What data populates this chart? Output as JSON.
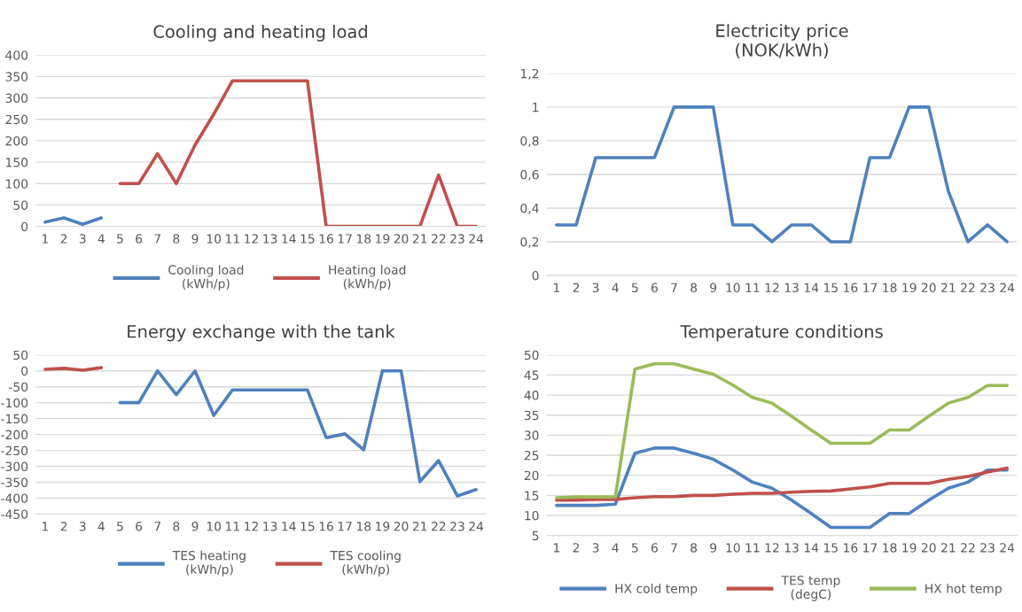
{
  "chart_data": [
    {
      "type": "line",
      "title": "Cooling and heating load",
      "categories": [
        "1",
        "2",
        "3",
        "4",
        "5",
        "6",
        "7",
        "8",
        "9",
        "10",
        "11",
        "12",
        "13",
        "14",
        "15",
        "16",
        "17",
        "18",
        "19",
        "20",
        "21",
        "22",
        "23",
        "24"
      ],
      "series": [
        {
          "name": "Cooling load\n(kWh/p)",
          "color": "#4f81bd",
          "values": [
            10,
            20,
            5,
            20,
            null,
            null,
            null,
            null,
            null,
            null,
            null,
            null,
            null,
            null,
            null,
            null,
            null,
            null,
            null,
            null,
            null,
            null,
            null,
            null
          ]
        },
        {
          "name": "Heating load\n(kWh/p)",
          "color": "#c0504d",
          "values": [
            null,
            null,
            null,
            null,
            100,
            100,
            170,
            100,
            190,
            262,
            340,
            340,
            340,
            340,
            340,
            0,
            0,
            0,
            0,
            0,
            0,
            120,
            0,
            0
          ]
        }
      ],
      "ylim": [
        0,
        400
      ],
      "yticks": [
        0,
        50,
        100,
        150,
        200,
        250,
        300,
        350,
        400
      ],
      "grid": "y",
      "legend": "bottom",
      "marker": "none",
      "line_style": "solid"
    },
    {
      "type": "line",
      "title": "Electricity price\n(NOK/kWh)",
      "categories": [
        "1",
        "2",
        "3",
        "4",
        "5",
        "6",
        "7",
        "8",
        "9",
        "10",
        "11",
        "12",
        "13",
        "14",
        "15",
        "16",
        "17",
        "18",
        "19",
        "20",
        "21",
        "22",
        "23",
        "24"
      ],
      "series": [
        {
          "color": "#4f81bd",
          "values": [
            0.3,
            0.3,
            0.7,
            0.7,
            0.7,
            0.7,
            1,
            1,
            1,
            0.3,
            0.3,
            0.2,
            0.3,
            0.3,
            0.2,
            0.2,
            0.7,
            0.7,
            1,
            1,
            0.5,
            0.2,
            0.3,
            0.2
          ]
        }
      ],
      "ylim": [
        0,
        1.2
      ],
      "yticks": [
        0,
        {
          "value": 0.2,
          "label": "0,2"
        },
        {
          "value": 0.4,
          "label": "0,4"
        },
        {
          "value": 0.6,
          "label": "0,6"
        },
        {
          "value": 0.8,
          "label": "0,8"
        },
        1,
        {
          "value": 1.2,
          "label": "1,2"
        }
      ],
      "grid": "y",
      "marker": "none",
      "line_style": "solid"
    },
    {
      "type": "line",
      "title": "Energy exchange with the tank",
      "categories": [
        "1",
        "2",
        "3",
        "4",
        "5",
        "6",
        "7",
        "8",
        "9",
        "10",
        "11",
        "12",
        "13",
        "14",
        "15",
        "16",
        "17",
        "18",
        "19",
        "20",
        "21",
        "22",
        "23",
        "24"
      ],
      "series": [
        {
          "name": "TES heating\n(kWh/p)",
          "color": "#4f81bd",
          "values": [
            null,
            null,
            null,
            null,
            -100,
            -100,
            0,
            -75,
            0,
            -140,
            -60,
            -60,
            -60,
            -60,
            -60,
            -210,
            -198,
            -248,
            0,
            0,
            -348,
            -282,
            -393,
            -373
          ]
        },
        {
          "name": "TES cooling\n(kWh/p)",
          "color": "#c0504d",
          "values": [
            5,
            8,
            2,
            10,
            null,
            null,
            null,
            null,
            null,
            null,
            null,
            null,
            null,
            null,
            null,
            null,
            null,
            null,
            null,
            null,
            null,
            null,
            null,
            null
          ]
        }
      ],
      "ylim": [
        -450,
        50
      ],
      "yticks": [
        -450,
        -400,
        -350,
        -300,
        -250,
        -200,
        -150,
        -100,
        -50,
        0,
        50
      ],
      "grid": "y",
      "legend": "bottom",
      "marker": "none",
      "line_style": "solid"
    },
    {
      "type": "line",
      "title": "Temperature conditions",
      "categories": [
        "1",
        "2",
        "3",
        "4",
        "5",
        "6",
        "7",
        "8",
        "9",
        "10",
        "11",
        "12",
        "13",
        "14",
        "15",
        "16",
        "17",
        "18",
        "19",
        "20",
        "21",
        "22",
        "23",
        "24"
      ],
      "series": [
        {
          "name": "HX cold temp",
          "color": "#4f81bd",
          "values": [
            12.5,
            12.5,
            12.5,
            12.8,
            25.5,
            26.8,
            26.8,
            25.5,
            24,
            21.3,
            18.3,
            16.8,
            13.8,
            10.5,
            7,
            7,
            7,
            10.5,
            10.5,
            13.8,
            16.8,
            18.3,
            21.3,
            21.3
          ]
        },
        {
          "name": "TES temp\n(degC)",
          "color": "#c0504d",
          "values": [
            13.8,
            13.8,
            14,
            14,
            14.4,
            14.7,
            14.7,
            15,
            15,
            15.3,
            15.5,
            15.5,
            15.8,
            16,
            16.1,
            16.6,
            17.1,
            18,
            18,
            18,
            19,
            19.7,
            20.8,
            21.8
          ]
        },
        {
          "name": "HX hot temp",
          "color": "#9bbb59",
          "values": [
            14.4,
            14.6,
            14.6,
            14.6,
            46.5,
            47.8,
            47.8,
            46.5,
            45.2,
            42.5,
            39.4,
            38,
            34.7,
            31.3,
            28,
            28,
            28,
            31.3,
            31.3,
            34.7,
            38,
            39.4,
            42.4,
            42.4
          ]
        }
      ],
      "ylim": [
        5,
        50
      ],
      "yticks": [
        5,
        10,
        15,
        20,
        25,
        30,
        35,
        40,
        45,
        50
      ],
      "grid": "y",
      "legend": "bottom",
      "marker": "none",
      "line_style": "solid"
    }
  ]
}
